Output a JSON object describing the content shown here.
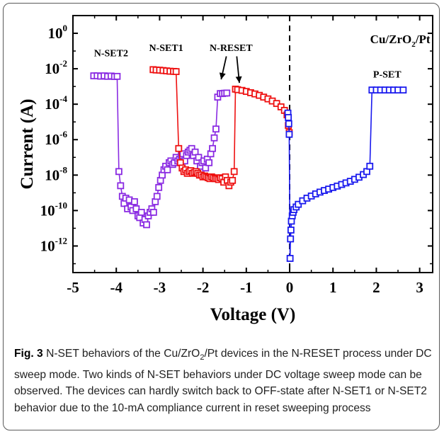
{
  "chart_data": {
    "type": "scatter",
    "xlabel": "Voltage (V)",
    "ylabel": "Current (A)",
    "xlim": [
      -5,
      3.3
    ],
    "ylim_log10": [
      -13.5,
      1
    ],
    "log_y": true,
    "grid": false,
    "x_ticks": [
      -5,
      -4,
      -3,
      -2,
      -1,
      0,
      1,
      2,
      3
    ],
    "x_tick_labels": [
      "-5",
      "-4",
      "-3",
      "-2",
      "-1",
      "0",
      "1",
      "2",
      "3"
    ],
    "y_ticks_log10": [
      0,
      -2,
      -4,
      -6,
      -8,
      -10,
      -12
    ],
    "y_tick_labels": [
      {
        "base": "10",
        "exp": "0"
      },
      {
        "base": "10",
        "exp": "-2"
      },
      {
        "base": "10",
        "exp": "-4"
      },
      {
        "base": "10",
        "exp": "-6"
      },
      {
        "base": "10",
        "exp": "-8"
      },
      {
        "base": "10",
        "exp": "-10"
      },
      {
        "base": "10",
        "exp": "-12"
      }
    ],
    "vertical_line_x": 0,
    "sample_label": {
      "main": "Cu/ZrO",
      "sub": "2",
      "rest": "/Pt"
    },
    "annotations": [
      "N-SET2",
      "N-SET1",
      "N-RESET",
      "P-SET"
    ],
    "colors": {
      "purple": "#8a2be2",
      "red": "#ee1111",
      "blue": "#1a1aee"
    },
    "series": [
      {
        "color": "purple",
        "points": [
          [
            -4.52,
            -2.4
          ],
          [
            -4.44,
            -2.4
          ],
          [
            -4.36,
            -2.42
          ],
          [
            -4.28,
            -2.4
          ],
          [
            -4.2,
            -2.43
          ],
          [
            -4.12,
            -2.41
          ],
          [
            -4.04,
            -2.44
          ],
          [
            -3.98,
            -2.43
          ],
          [
            -3.94,
            -7.8
          ],
          [
            -3.9,
            -8.6
          ],
          [
            -3.86,
            -9.2
          ],
          [
            -3.82,
            -9.6
          ],
          [
            -3.78,
            -9.3
          ],
          [
            -3.74,
            -9.9
          ],
          [
            -3.7,
            -9.4
          ],
          [
            -3.66,
            -9.8
          ],
          [
            -3.62,
            -10.0
          ],
          [
            -3.58,
            -9.5
          ],
          [
            -3.54,
            -9.9
          ],
          [
            -3.5,
            -10.3
          ],
          [
            -3.46,
            -10.4
          ],
          [
            -3.42,
            -10.1
          ],
          [
            -3.38,
            -10.7
          ],
          [
            -3.34,
            -10.5
          ],
          [
            -3.3,
            -10.8
          ],
          [
            -3.26,
            -10.3
          ],
          [
            -3.22,
            -10.1
          ],
          [
            -3.18,
            -9.9
          ],
          [
            -3.14,
            -10.1
          ],
          [
            -3.1,
            -9.5
          ],
          [
            -3.06,
            -9.2
          ],
          [
            -3.02,
            -8.7
          ],
          [
            -2.98,
            -8.3
          ],
          [
            -2.94,
            -8.0
          ],
          [
            -2.9,
            -7.7
          ],
          [
            -2.86,
            -7.5
          ],
          [
            -2.82,
            -7.7
          ],
          [
            -2.78,
            -7.3
          ],
          [
            -2.74,
            -7.2
          ],
          [
            -2.7,
            -7.4
          ],
          [
            -2.66,
            -7.3
          ],
          [
            -2.62,
            -7.0
          ],
          [
            -2.58,
            -7.2
          ],
          [
            -2.54,
            -7.1
          ],
          [
            -2.5,
            -6.9
          ],
          [
            -2.46,
            -6.8
          ],
          [
            -2.42,
            -7.2
          ],
          [
            -2.38,
            -6.9
          ],
          [
            -2.34,
            -6.7
          ],
          [
            -2.3,
            -6.6
          ],
          [
            -2.26,
            -6.5
          ],
          [
            -2.22,
            -6.9
          ],
          [
            -2.18,
            -6.7
          ],
          [
            -2.14,
            -7.2
          ],
          [
            -2.1,
            -7.0
          ],
          [
            -2.06,
            -7.5
          ],
          [
            -2.02,
            -7.3
          ],
          [
            -1.98,
            -7.2
          ],
          [
            -1.94,
            -7.6
          ],
          [
            -1.9,
            -7.1
          ],
          [
            -1.86,
            -7.3
          ],
          [
            -1.82,
            -6.8
          ],
          [
            -1.78,
            -6.5
          ],
          [
            -1.74,
            -5.9
          ],
          [
            -1.7,
            -5.4
          ],
          [
            -1.66,
            -3.6
          ],
          [
            -1.6,
            -3.4
          ],
          [
            -1.55,
            -3.4
          ],
          [
            -1.5,
            -3.38
          ],
          [
            -1.45,
            -3.37
          ]
        ]
      },
      {
        "color": "red",
        "points": [
          [
            -3.15,
            -2.05
          ],
          [
            -3.08,
            -2.07
          ],
          [
            -3.0,
            -2.08
          ],
          [
            -2.92,
            -2.1
          ],
          [
            -2.84,
            -2.12
          ],
          [
            -2.76,
            -2.14
          ],
          [
            -2.68,
            -2.15
          ],
          [
            -2.62,
            -2.16
          ],
          [
            -2.56,
            -6.5
          ],
          [
            -2.52,
            -7.3
          ],
          [
            -2.48,
            -7.6
          ],
          [
            -2.44,
            -7.8
          ],
          [
            -2.4,
            -7.7
          ],
          [
            -2.36,
            -7.9
          ],
          [
            -2.32,
            -7.8
          ],
          [
            -2.28,
            -7.75
          ],
          [
            -2.24,
            -7.9
          ],
          [
            -2.2,
            -7.85
          ],
          [
            -2.16,
            -7.8
          ],
          [
            -2.12,
            -7.9
          ],
          [
            -2.08,
            -8.0
          ],
          [
            -2.04,
            -8.0
          ],
          [
            -2.0,
            -8.1
          ],
          [
            -1.96,
            -8.05
          ],
          [
            -1.92,
            -8.1
          ],
          [
            -1.88,
            -8.15
          ],
          [
            -1.84,
            -8.2
          ],
          [
            -1.8,
            -8.1
          ],
          [
            -1.76,
            -8.15
          ],
          [
            -1.72,
            -8.2
          ],
          [
            -1.68,
            -8.2
          ],
          [
            -1.64,
            -8.25
          ],
          [
            -1.6,
            -8.15
          ],
          [
            -1.56,
            -8.2
          ],
          [
            -1.52,
            -8.4
          ],
          [
            -1.48,
            -8.1
          ],
          [
            -1.44,
            -8.3
          ],
          [
            -1.4,
            -8.6
          ],
          [
            -1.36,
            -8.4
          ],
          [
            -1.32,
            -8.3
          ],
          [
            -1.28,
            -7.8
          ],
          [
            -1.25,
            -3.15
          ],
          [
            -1.2,
            -3.18
          ],
          [
            -1.1,
            -3.22
          ],
          [
            -1.0,
            -3.28
          ],
          [
            -0.9,
            -3.35
          ],
          [
            -0.8,
            -3.42
          ],
          [
            -0.7,
            -3.5
          ],
          [
            -0.6,
            -3.6
          ],
          [
            -0.5,
            -3.7
          ],
          [
            -0.4,
            -3.82
          ],
          [
            -0.3,
            -3.96
          ],
          [
            -0.2,
            -4.15
          ],
          [
            -0.12,
            -4.35
          ],
          [
            -0.06,
            -4.6
          ],
          [
            -0.03,
            -5.2
          ],
          [
            -0.01,
            -5.6
          ]
        ]
      },
      {
        "color": "blue",
        "points": [
          [
            -0.04,
            -4.5
          ],
          [
            -0.03,
            -4.75
          ],
          [
            -0.02,
            -5.1
          ],
          [
            -0.01,
            -5.7
          ],
          [
            0.01,
            -12.7
          ],
          [
            0.02,
            -11.6
          ],
          [
            0.03,
            -11.1
          ],
          [
            0.04,
            -10.6
          ],
          [
            0.06,
            -10.3
          ],
          [
            0.08,
            -10.1
          ],
          [
            0.1,
            -9.95
          ],
          [
            0.15,
            -9.8
          ],
          [
            0.2,
            -9.65
          ],
          [
            0.3,
            -9.45
          ],
          [
            0.4,
            -9.3
          ],
          [
            0.5,
            -9.18
          ],
          [
            0.6,
            -9.06
          ],
          [
            0.7,
            -8.96
          ],
          [
            0.8,
            -8.87
          ],
          [
            0.9,
            -8.79
          ],
          [
            1.0,
            -8.7
          ],
          [
            1.1,
            -8.62
          ],
          [
            1.2,
            -8.53
          ],
          [
            1.3,
            -8.44
          ],
          [
            1.4,
            -8.35
          ],
          [
            1.5,
            -8.24
          ],
          [
            1.6,
            -8.12
          ],
          [
            1.7,
            -7.97
          ],
          [
            1.78,
            -7.8
          ],
          [
            1.85,
            -7.5
          ],
          [
            1.9,
            -3.2
          ],
          [
            2.0,
            -3.2
          ],
          [
            2.1,
            -3.2
          ],
          [
            2.2,
            -3.2
          ],
          [
            2.3,
            -3.2
          ],
          [
            2.4,
            -3.2
          ],
          [
            2.5,
            -3.2
          ],
          [
            2.62,
            -3.2
          ]
        ]
      }
    ]
  },
  "caption": {
    "fig_label": "Fig. 3",
    "text_before_sub": " N-SET behaviors of the Cu/ZrO",
    "sub": "2",
    "text_after_sub": "/Pt devices in the N-RESET process under DC sweep mode. Two kinds of N-SET behaviors under DC voltage sweep mode can be observed. The devices can hardly switch back to OFF-state after N-SET1 or N-SET2 behavior due to the 10-mA compliance current in reset sweeping process"
  }
}
